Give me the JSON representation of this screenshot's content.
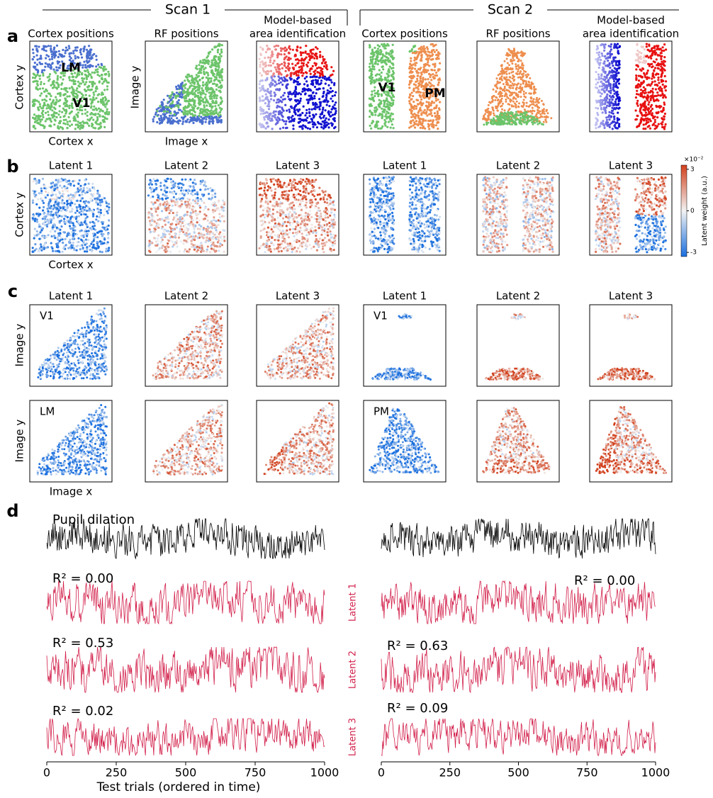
{
  "header": {
    "scans": [
      "Scan 1",
      "Scan 2"
    ]
  },
  "panel_labels": [
    "a",
    "b",
    "c",
    "d"
  ],
  "panel_a": {
    "titles": [
      [
        "Cortex positions"
      ],
      [
        "RF positions"
      ],
      [
        "Model-based",
        "area identification"
      ],
      [
        "Cortex positions"
      ],
      [
        "RF positions"
      ],
      [
        "Model-based",
        "area identification"
      ]
    ],
    "y_labels": [
      "Cortex y",
      "Image y"
    ],
    "x_labels": [
      "Cortex x",
      "Image x"
    ],
    "area_labels": [
      "LM",
      "V1",
      "V1",
      "PM"
    ]
  },
  "panel_b": {
    "titles": [
      "Latent 1",
      "Latent 2",
      "Latent 3",
      "Latent 1",
      "Latent 2",
      "Latent 3"
    ],
    "y_label": "Cortex y",
    "x_label": "Cortex x",
    "colorbar": {
      "exponent": "×10⁻²",
      "label": "Latent weight (a.u.)",
      "ticks": [
        3,
        0,
        -3
      ],
      "lim": [
        -3.3,
        3.3
      ]
    }
  },
  "panel_c": {
    "titles": [
      "Latent 1",
      "Latent 2",
      "Latent 3",
      "Latent 1",
      "Latent 2",
      "Latent 3"
    ],
    "y_label": "Image y",
    "x_label": "Image x",
    "area_labels": [
      "V1",
      "LM",
      "V1",
      "PM"
    ]
  },
  "panel_d": {
    "pupil_label": "Pupil dilation",
    "latent_labels": [
      "Latent 1",
      "Latent 2",
      "Latent 3"
    ],
    "r2_scan1": {
      "values": [
        0.0,
        0.53,
        0.02
      ],
      "value_labels": [
        "R² = 0.00",
        "R² = 0.53",
        "R² = 0.02"
      ]
    },
    "r2_scan2": {
      "values": [
        0.0,
        0.63,
        0.09
      ],
      "value_labels": [
        "R² = 0.00",
        "R² = 0.63",
        "R² = 0.09"
      ]
    },
    "xlim": [
      0,
      1000
    ],
    "xticks": [
      0,
      250,
      500,
      750,
      1000
    ],
    "x_label": "Test trials (ordered in time)"
  }
}
